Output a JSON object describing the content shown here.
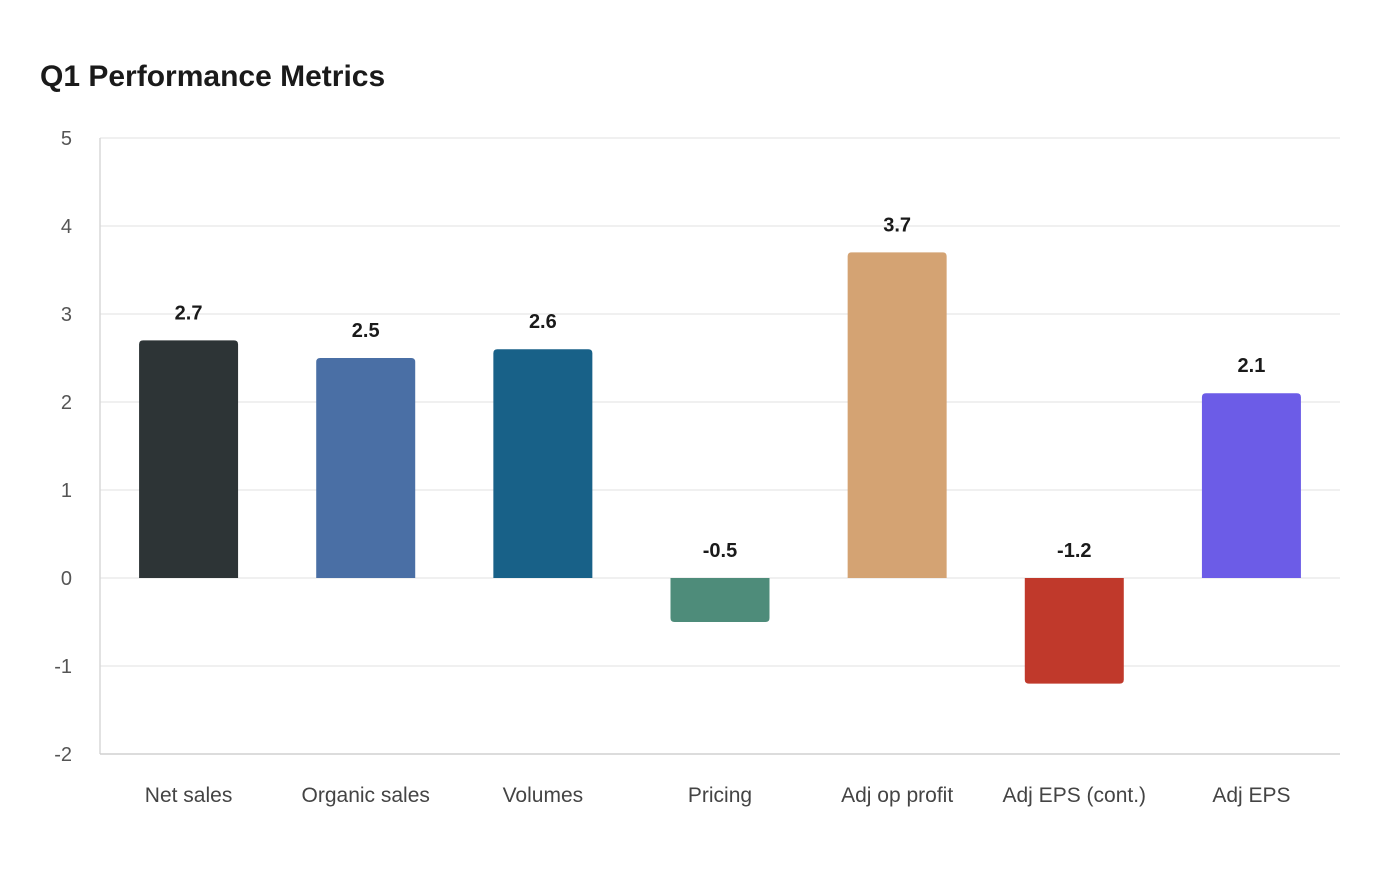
{
  "chart_data": {
    "type": "bar",
    "title": "Q1 Performance Metrics",
    "xlabel": "",
    "ylabel": "",
    "ylim": [
      -2,
      5
    ],
    "yticks": [
      -2,
      -1,
      0,
      1,
      2,
      3,
      4,
      5
    ],
    "grid": true,
    "categories": [
      "Net sales",
      "Organic sales",
      "Volumes",
      "Pricing",
      "Adj op profit",
      "Adj EPS (cont.)",
      "Adj EPS"
    ],
    "values": [
      2.7,
      2.5,
      2.6,
      -0.5,
      3.7,
      -1.2,
      2.1
    ],
    "colors": [
      "#2d3436",
      "#4a6fa5",
      "#186188",
      "#4e8c7a",
      "#d4a373",
      "#c0392b",
      "#6c5ce7"
    ]
  }
}
